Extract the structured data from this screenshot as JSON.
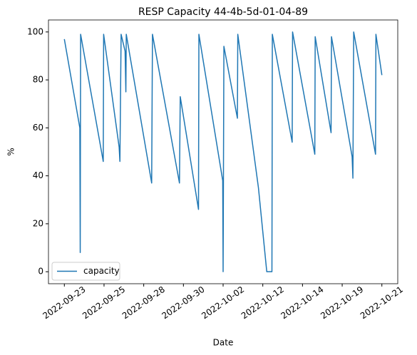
{
  "chart_data": {
    "type": "line",
    "title": "RESP Capacity 44-4b-5d-01-04-89",
    "xlabel": "Date",
    "ylabel": "%",
    "x": [
      0,
      0.39,
      0.4,
      0.41,
      0.98,
      0.99,
      1.38,
      1.4,
      1.43,
      1.53,
      1.55,
      1.56,
      2.2,
      2.22,
      2.9,
      2.92,
      3.38,
      3.39,
      3.99,
      4.0,
      4.02,
      4.36,
      4.37,
      4.89,
      5.04,
      5.1,
      5.23,
      5.24,
      5.74,
      5.75,
      6.31,
      6.32,
      6.72,
      6.73,
      7.25,
      7.27,
      7.29,
      7.84,
      7.85,
      8.0
    ],
    "series": [
      {
        "name": "capacity",
        "color": "#1f77b4",
        "values": [
          97,
          60,
          8,
          99,
          46,
          99,
          52,
          46,
          99,
          92,
          75,
          99,
          37,
          99,
          37,
          73,
          26,
          99,
          38,
          0,
          94,
          64,
          99,
          35,
          10,
          0,
          0,
          99,
          54,
          100,
          49,
          98,
          58,
          98,
          48,
          39,
          100,
          49,
          99,
          82
        ]
      }
    ],
    "xlim": [
      -0.4,
      8.4
    ],
    "xticks": [
      {
        "value": 0,
        "label": "2022-09-23"
      },
      {
        "value": 1,
        "label": "2022-09-25"
      },
      {
        "value": 2,
        "label": "2022-09-28"
      },
      {
        "value": 3,
        "label": "2022-09-30"
      },
      {
        "value": 4,
        "label": "2022-10-02"
      },
      {
        "value": 5,
        "label": "2022-10-12"
      },
      {
        "value": 6,
        "label": "2022-10-14"
      },
      {
        "value": 7,
        "label": "2022-10-19"
      },
      {
        "value": 8,
        "label": "2022-10-21"
      }
    ],
    "ylim": [
      -5,
      105
    ],
    "yticks": [
      0,
      20,
      40,
      60,
      80,
      100
    ],
    "legend": "lower left"
  }
}
